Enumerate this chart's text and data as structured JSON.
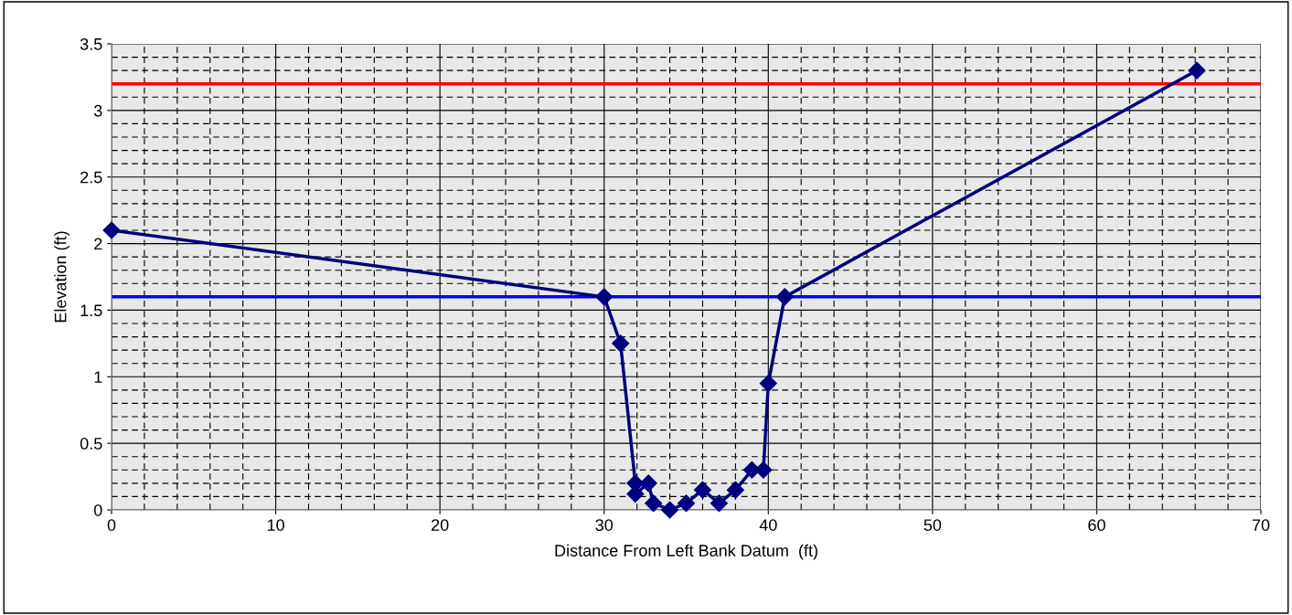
{
  "chart_data": {
    "type": "line",
    "xlabel": "Distance From Left Bank Datum  (ft)",
    "ylabel": "Elevation (ft)",
    "series": [
      {
        "color": "#000080",
        "x": [
          0,
          30,
          31,
          31.9,
          31.9,
          32.7,
          33,
          34,
          35,
          36,
          37,
          38,
          39,
          39.7,
          40,
          41,
          66.1
        ],
        "values": [
          2.1,
          1.6,
          1.25,
          0.2,
          0.12,
          0.2,
          0.05,
          0,
          0.05,
          0.15,
          0.05,
          0.15,
          0.3,
          0.3,
          0.95,
          1.6,
          3.3
        ]
      }
    ],
    "marker": "diamond",
    "line_style": "solid",
    "grid": true,
    "xlim": [
      0,
      70
    ],
    "xticks": [
      0,
      10,
      20,
      30,
      40,
      50,
      60,
      70
    ],
    "ylim": [
      0,
      3.5
    ],
    "yticks": [
      0,
      0.5,
      1,
      1.5,
      2,
      2.5,
      3,
      3.5
    ],
    "ref_lines": [
      {
        "axis": "y",
        "value": 3.2,
        "color": "#ff0000"
      },
      {
        "axis": "y",
        "value": 1.6,
        "color": "#0000ff"
      }
    ]
  }
}
